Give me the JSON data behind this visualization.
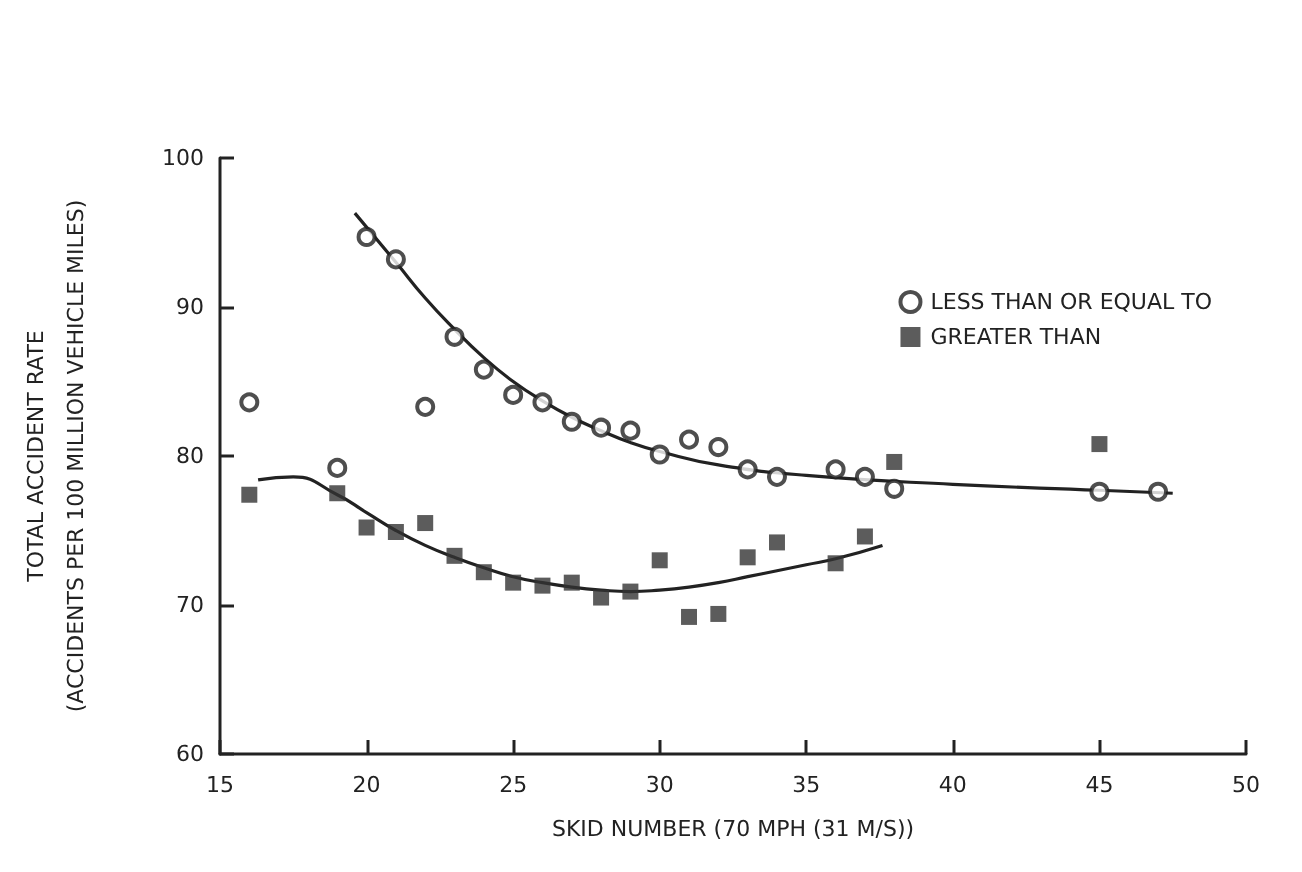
{
  "chart_data": {
    "type": "scatter",
    "xlabel": "SKID NUMBER (70 MPH (31 M/S))",
    "ylabel": "TOTAL ACCIDENT RATE\n(ACCIDENTS PER 100 MILLION VEHICLE MILES)",
    "xlim": [
      15,
      50
    ],
    "xticks": [
      15,
      20,
      25,
      30,
      35,
      40,
      45,
      50
    ],
    "ylim": [
      60,
      100
    ],
    "yticks": [
      60,
      70,
      80,
      90,
      100
    ],
    "grid": false,
    "legend": "top right",
    "series": [
      {
        "name": "LESS THAN OR EQUAL TO",
        "color": "#222222",
        "marker": "circle",
        "x": [
          16,
          19,
          20,
          21,
          22,
          23,
          24,
          25,
          26,
          27,
          28,
          29,
          30,
          31,
          32,
          33,
          34,
          36,
          37,
          38,
          45,
          47
        ],
        "values": [
          83.6,
          79.2,
          94.7,
          93.2,
          83.3,
          88.0,
          85.8,
          84.1,
          83.6,
          82.3,
          81.9,
          81.7,
          80.1,
          81.1,
          80.6,
          79.1,
          78.6,
          79.1,
          78.6,
          77.8,
          77.6,
          77.6
        ]
      },
      {
        "name": "GREATER THAN",
        "color": "#333333",
        "marker": "square",
        "x": [
          16,
          19,
          20,
          21,
          22,
          23,
          24,
          25,
          26,
          27,
          28,
          29,
          30,
          31,
          32,
          33,
          34,
          36,
          37,
          38,
          45
        ],
        "values": [
          77.4,
          77.5,
          75.2,
          74.9,
          75.5,
          73.3,
          72.2,
          71.5,
          71.3,
          71.5,
          70.5,
          70.9,
          73.0,
          69.2,
          69.4,
          73.2,
          74.2,
          72.8,
          74.6,
          79.6,
          80.8
        ]
      },
      {
        "type": "line",
        "color": "#222222",
        "marker": "none",
        "x": [
          19.6,
          21,
          22,
          23,
          24,
          25,
          26,
          27,
          28,
          29,
          30,
          32,
          35,
          40,
          45,
          47.5
        ],
        "values": [
          96.3,
          93.0,
          90.6,
          88.5,
          86.6,
          85.0,
          83.7,
          82.6,
          81.7,
          80.9,
          80.3,
          79.4,
          78.7,
          78.1,
          77.7,
          77.5
        ]
      },
      {
        "type": "line",
        "color": "#222222",
        "marker": "none",
        "x": [
          16.3,
          17.5,
          19,
          20,
          21,
          22,
          23,
          24,
          25,
          26,
          27,
          28,
          29,
          30,
          31,
          32,
          33,
          34,
          35,
          36,
          37.6
        ],
        "values": [
          78.4,
          78.6,
          77.4,
          76.2,
          75.0,
          74.0,
          73.2,
          72.5,
          71.9,
          71.5,
          71.2,
          71.0,
          70.9,
          71.0,
          71.2,
          71.5,
          71.9,
          72.3,
          72.7,
          73.1,
          74.0
        ]
      }
    ]
  }
}
